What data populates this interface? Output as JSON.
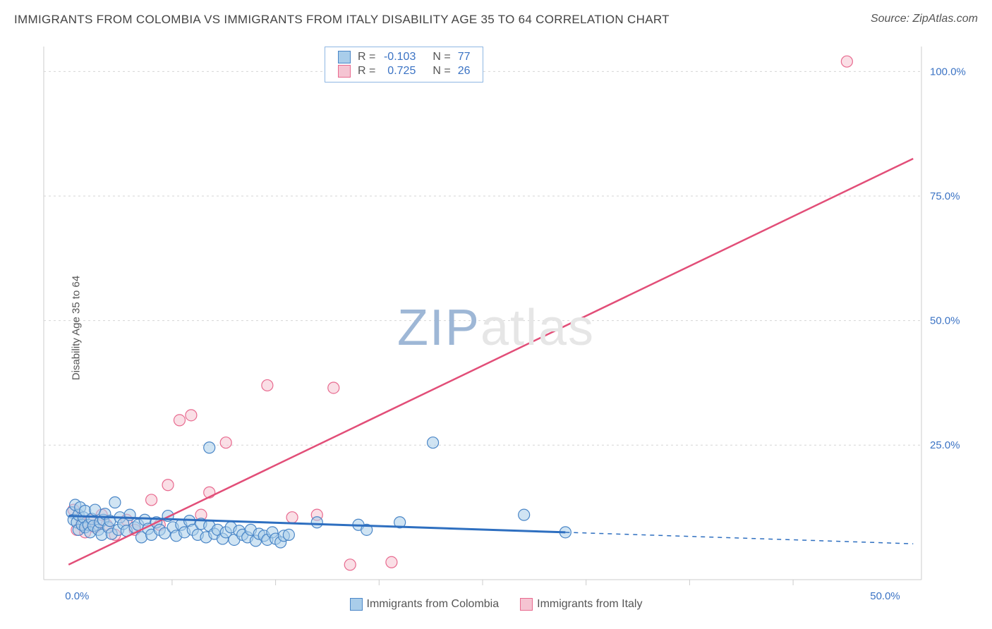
{
  "chart": {
    "type": "scatter",
    "title": "IMMIGRANTS FROM COLOMBIA VS IMMIGRANTS FROM ITALY DISABILITY AGE 35 TO 64 CORRELATION CHART",
    "source": "Source: ZipAtlas.com",
    "watermark_a": "ZIP",
    "watermark_b": "atlas",
    "title_fontsize": 17,
    "title_color": "#444444",
    "background_color": "#ffffff",
    "plot_background": "#ffffff",
    "grid_color": "#d5d5d5",
    "axis_line_color": "#cccccc",
    "ylabel": "Disability Age 35 to 64",
    "xlim": [
      -1.5,
      51.5
    ],
    "ylim": [
      -2,
      105
    ],
    "xticks": [
      0,
      50
    ],
    "xtick_labels": [
      "0.0%",
      "50.0%"
    ],
    "yticks": [
      25,
      50,
      75,
      100
    ],
    "ytick_labels": [
      "25.0%",
      "50.0%",
      "75.0%",
      "100.0%"
    ],
    "tick_label_color": "#3b73c4",
    "tick_fontsize": 15,
    "minor_xticks": [
      6.25,
      12.5,
      18.75,
      25,
      31.25,
      37.5,
      43.75
    ],
    "marker_radius": 8,
    "marker_opacity": 0.55,
    "marker_stroke_width": 1.2,
    "series": {
      "colombia": {
        "label": "Immigrants from Colombia",
        "fill": "#a9cdea",
        "stroke": "#4a86c7",
        "line_color": "#2e6fc0",
        "line_width": 3,
        "line_dash_after_x": 30,
        "stats_r": "-0.103",
        "stats_n": "77",
        "points": [
          [
            0.2,
            11.5
          ],
          [
            0.3,
            10.0
          ],
          [
            0.4,
            13.0
          ],
          [
            0.5,
            9.5
          ],
          [
            0.6,
            11.0
          ],
          [
            0.6,
            8.0
          ],
          [
            0.7,
            12.5
          ],
          [
            0.8,
            9.0
          ],
          [
            0.9,
            10.5
          ],
          [
            1.0,
            8.5
          ],
          [
            1.0,
            11.8
          ],
          [
            1.2,
            9.0
          ],
          [
            1.3,
            7.5
          ],
          [
            1.4,
            10.2
          ],
          [
            1.5,
            8.8
          ],
          [
            1.6,
            12.0
          ],
          [
            1.8,
            8.0
          ],
          [
            1.9,
            9.5
          ],
          [
            2.0,
            7.0
          ],
          [
            2.1,
            10.0
          ],
          [
            2.2,
            11.2
          ],
          [
            2.4,
            8.5
          ],
          [
            2.5,
            9.8
          ],
          [
            2.6,
            7.2
          ],
          [
            2.8,
            13.5
          ],
          [
            3.0,
            8.0
          ],
          [
            3.1,
            10.5
          ],
          [
            3.3,
            9.2
          ],
          [
            3.5,
            7.8
          ],
          [
            3.7,
            11.0
          ],
          [
            4.0,
            8.5
          ],
          [
            4.2,
            9.0
          ],
          [
            4.4,
            6.5
          ],
          [
            4.6,
            10.0
          ],
          [
            4.8,
            8.2
          ],
          [
            5.0,
            7.0
          ],
          [
            5.3,
            9.5
          ],
          [
            5.5,
            8.0
          ],
          [
            5.8,
            7.3
          ],
          [
            6.0,
            10.8
          ],
          [
            6.3,
            8.5
          ],
          [
            6.5,
            6.8
          ],
          [
            6.8,
            9.0
          ],
          [
            7.0,
            7.5
          ],
          [
            7.3,
            9.8
          ],
          [
            7.5,
            8.0
          ],
          [
            7.8,
            7.0
          ],
          [
            8.0,
            9.2
          ],
          [
            8.3,
            6.5
          ],
          [
            8.5,
            8.8
          ],
          [
            8.8,
            7.2
          ],
          [
            9.0,
            8.0
          ],
          [
            9.3,
            6.2
          ],
          [
            9.5,
            7.5
          ],
          [
            9.8,
            8.5
          ],
          [
            10.0,
            6.0
          ],
          [
            10.3,
            7.8
          ],
          [
            10.5,
            7.0
          ],
          [
            10.8,
            6.5
          ],
          [
            11.0,
            8.0
          ],
          [
            11.3,
            5.8
          ],
          [
            11.5,
            7.2
          ],
          [
            11.8,
            6.8
          ],
          [
            12.0,
            6.0
          ],
          [
            12.3,
            7.5
          ],
          [
            12.5,
            6.2
          ],
          [
            12.8,
            5.5
          ],
          [
            13.0,
            6.8
          ],
          [
            13.3,
            7.0
          ],
          [
            8.5,
            24.5
          ],
          [
            15.0,
            9.5
          ],
          [
            17.5,
            9.0
          ],
          [
            18.0,
            8.0
          ],
          [
            20.0,
            9.5
          ],
          [
            22.0,
            25.5
          ],
          [
            27.5,
            11.0
          ],
          [
            30.0,
            7.5
          ]
        ],
        "trend": {
          "x1": 0,
          "y1": 10.8,
          "x2": 30,
          "y2": 7.5,
          "dash_x2": 51,
          "dash_y2": 5.2
        }
      },
      "italy": {
        "label": "Immigrants from Italy",
        "fill": "#f5c4d2",
        "stroke": "#e86a8f",
        "line_color": "#e24e78",
        "line_width": 2.5,
        "stats_r": "0.725",
        "stats_n": "26",
        "points": [
          [
            0.3,
            12.0
          ],
          [
            0.5,
            8.0
          ],
          [
            0.8,
            9.5
          ],
          [
            1.0,
            7.5
          ],
          [
            1.3,
            10.0
          ],
          [
            1.6,
            8.5
          ],
          [
            2.0,
            11.0
          ],
          [
            2.3,
            9.0
          ],
          [
            2.8,
            7.0
          ],
          [
            3.5,
            10.0
          ],
          [
            4.0,
            8.0
          ],
          [
            5.0,
            14.0
          ],
          [
            5.5,
            9.0
          ],
          [
            6.0,
            17.0
          ],
          [
            6.7,
            30.0
          ],
          [
            7.4,
            31.0
          ],
          [
            8.0,
            11.0
          ],
          [
            8.5,
            15.5
          ],
          [
            9.5,
            25.5
          ],
          [
            12.0,
            37.0
          ],
          [
            13.5,
            10.5
          ],
          [
            15.0,
            11.0
          ],
          [
            16.0,
            36.5
          ],
          [
            17.0,
            1.0
          ],
          [
            19.5,
            1.5
          ],
          [
            47.0,
            102.0
          ]
        ],
        "trend": {
          "x1": 0,
          "y1": 1.0,
          "x2": 51,
          "y2": 82.5
        }
      }
    },
    "stats_box": {
      "label_color": "#555555",
      "value_color": "#3b73c4",
      "r_label": "R =",
      "n_label": "N ="
    },
    "legend_label_color": "#555555"
  }
}
